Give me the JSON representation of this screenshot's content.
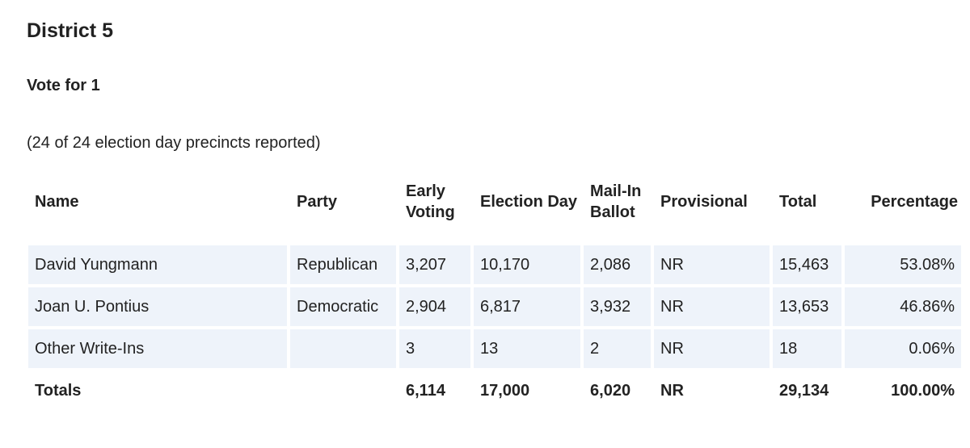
{
  "header": {
    "title": "District 5",
    "subtitle": "Vote for 1",
    "note": "(24 of 24 election day precincts reported)"
  },
  "table": {
    "columns": [
      "Name",
      "Party",
      "Early Voting",
      "Election Day",
      "Mail-In Ballot",
      "Provisional",
      "Total",
      "Percentage"
    ],
    "rows": [
      [
        "David Yungmann",
        "Republican",
        "3,207",
        "10,170",
        "2,086",
        "NR",
        "15,463",
        "53.08%"
      ],
      [
        "Joan U. Pontius",
        "Democratic",
        "2,904",
        "6,817",
        "3,932",
        "NR",
        "13,653",
        "46.86%"
      ],
      [
        "Other Write-Ins",
        null,
        "3",
        "13",
        "2",
        "NR",
        "18",
        "0.06%"
      ]
    ],
    "totals": [
      "Totals",
      null,
      "6,114",
      "17,000",
      "6,020",
      "NR",
      "29,134",
      "100.00%"
    ]
  }
}
